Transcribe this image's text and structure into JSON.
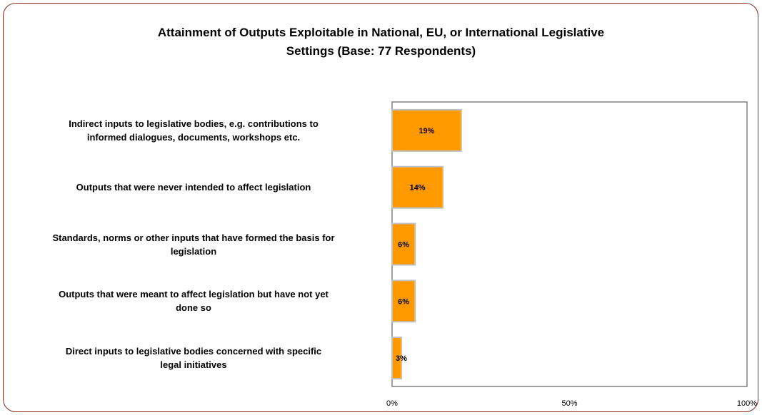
{
  "chart_data": {
    "type": "bar",
    "orientation": "horizontal",
    "title_lines": [
      "Attainment of Outputs Exploitable in National, EU, or International Legislative",
      "Settings (Base: 77 Respondents)"
    ],
    "categories": [
      [
        "Indirect inputs to legislative bodies, e.g. contributions to",
        "informed dialogues, documents, workshops etc."
      ],
      [
        "Outputs that were never intended to affect legislation"
      ],
      [
        "Standards, norms or other inputs that have formed the basis for",
        "legislation"
      ],
      [
        "Outputs that were meant to affect legislation but have not yet",
        "done so"
      ],
      [
        "Direct inputs to legislative bodies concerned with specific",
        "legal initiatives"
      ]
    ],
    "values": [
      19.48,
      14.29,
      6.49,
      6.49,
      2.6
    ],
    "data_labels": [
      "19%",
      "14%",
      "6%",
      "6%",
      "3%"
    ],
    "x_ticks": [
      "0%",
      "50%",
      "100%"
    ],
    "x_tick_values": [
      0,
      50,
      100
    ],
    "xlim": [
      0,
      100
    ],
    "xlabel": "",
    "ylabel": "",
    "grid": false,
    "legend": "none",
    "colors": {
      "bar_fill": "#ff9900",
      "bar_stroke": "#c0c0c0",
      "axis": "#808080",
      "frame": "#8b2a1e"
    }
  }
}
